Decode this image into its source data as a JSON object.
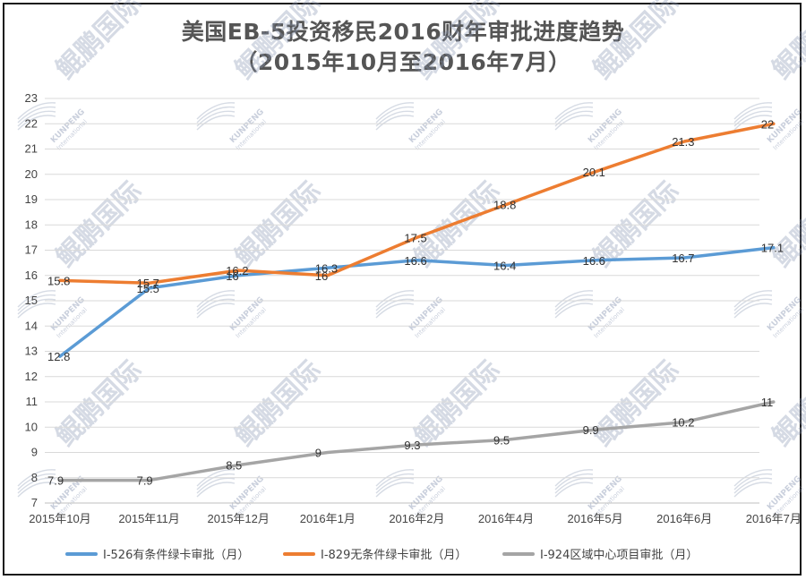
{
  "chart_data": {
    "type": "line",
    "title": "美国EB-5投资移民2016财年审批进度趋势",
    "subtitle": "（2015年10月至2016年7月）",
    "categories": [
      "2015年10月",
      "2015年11月",
      "2015年12月",
      "2016年1月",
      "2016年2月",
      "2016年4月",
      "2016年5月",
      "2016年6月",
      "2016年7月"
    ],
    "ylim": [
      7,
      23
    ],
    "yticks": [
      7,
      8,
      9,
      10,
      11,
      12,
      13,
      14,
      15,
      16,
      17,
      18,
      19,
      20,
      21,
      22,
      23
    ],
    "grid": true,
    "legend_position": "bottom",
    "series": [
      {
        "name": "I-526有条件绿卡审批（月）",
        "color": "#5b9bd5",
        "values": [
          12.8,
          15.5,
          16,
          16.3,
          16.6,
          16.4,
          16.6,
          16.7,
          17.1
        ],
        "labels": [
          "12.8",
          "15.5",
          "16",
          "16.3",
          "16.6",
          "16.4",
          "16.6",
          "16.7",
          "17.1"
        ]
      },
      {
        "name": "I-829无条件绿卡审批（月）",
        "color": "#ed7d31",
        "values": [
          15.8,
          15.7,
          16.2,
          16,
          17.5,
          18.8,
          20.1,
          21.3,
          22
        ],
        "labels": [
          "15.8",
          "15.7",
          "16.2",
          "16",
          "17.5",
          "18.8",
          "20.1",
          "21.3",
          "22"
        ]
      },
      {
        "name": "I-924区域中心项目审批（月）",
        "color": "#a5a5a5",
        "values": [
          7.9,
          7.9,
          8.5,
          9,
          9.3,
          9.5,
          9.9,
          10.2,
          11
        ],
        "labels": [
          "7.9",
          "7.9",
          "8.5",
          "9",
          "9.3",
          "9.5",
          "9.9",
          "10.2",
          "11"
        ]
      }
    ]
  },
  "watermark": {
    "text": "鲲鹏国际",
    "brand": "KUNPENG",
    "sub": "International",
    "color": "#8a97b3"
  }
}
